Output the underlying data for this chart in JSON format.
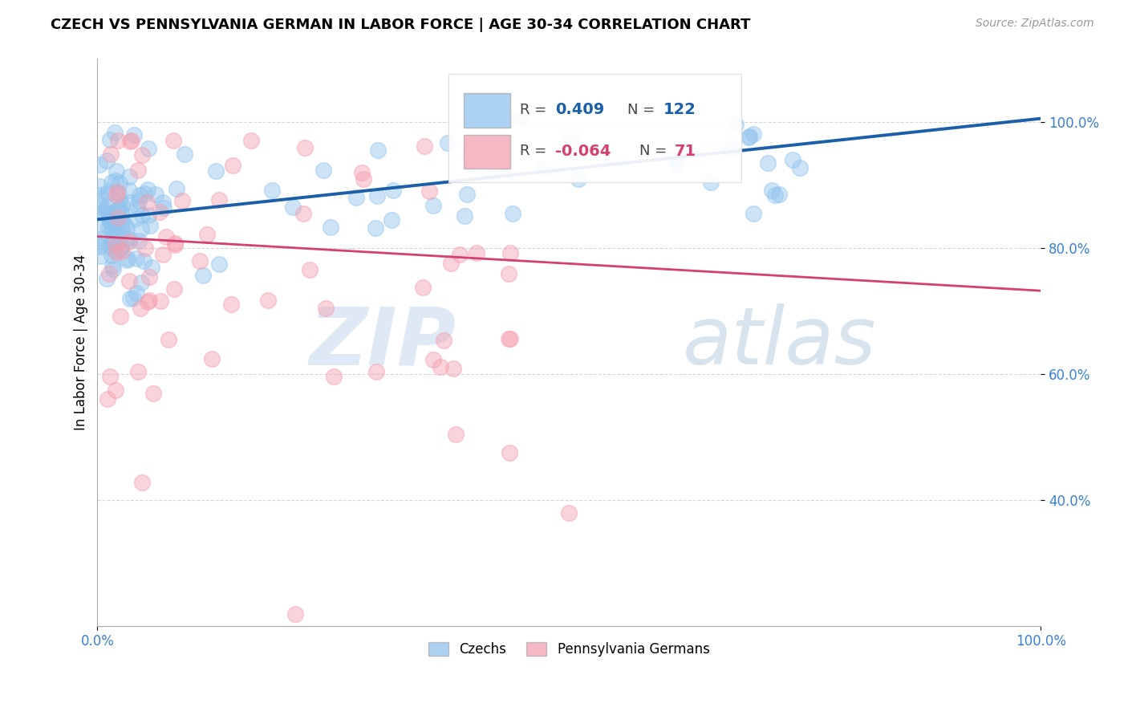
{
  "title": "CZECH VS PENNSYLVANIA GERMAN IN LABOR FORCE | AGE 30-34 CORRELATION CHART",
  "source": "Source: ZipAtlas.com",
  "ylabel": "In Labor Force | Age 30-34",
  "ytick_labels": [
    "40.0%",
    "60.0%",
    "80.0%",
    "100.0%"
  ],
  "ytick_values": [
    0.4,
    0.6,
    0.8,
    1.0
  ],
  "xlim": [
    0.0,
    1.0
  ],
  "ylim": [
    0.2,
    1.1
  ],
  "czech_R": 0.409,
  "czech_N": 122,
  "penn_R": -0.064,
  "penn_N": 71,
  "czech_color": "#90C4EE",
  "penn_color": "#F4A0B0",
  "czech_line_color": "#1a5fa8",
  "penn_line_color": "#d44070",
  "legend_labels": [
    "Czechs",
    "Pennsylvania Germans"
  ],
  "watermark_zip": "ZIP",
  "watermark_atlas": "atlas",
  "background_color": "#ffffff",
  "grid_color": "#cccccc",
  "cz_line_x0": 0.0,
  "cz_line_y0": 0.845,
  "cz_line_x1": 1.0,
  "cz_line_y1": 1.005,
  "pe_line_x0": 0.0,
  "pe_line_y0": 0.818,
  "pe_line_x1": 1.0,
  "pe_line_y1": 0.732
}
